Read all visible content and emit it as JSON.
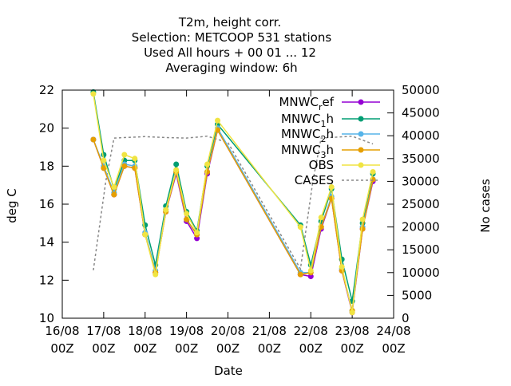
{
  "chart_data": {
    "type": "line",
    "title_lines": [
      "T2m, height corr.",
      "Selection: METCOOP    531 stations",
      "Used  All hours  + 00 01 ... 12",
      "Averaging window:  6h"
    ],
    "xlabel": "Date",
    "ylabel": "deg C",
    "y2label": "No cases",
    "xlim": [
      0,
      8
    ],
    "ylim": [
      10,
      22
    ],
    "y2lim": [
      0,
      50000
    ],
    "x_unit": "days since 16/08 00Z",
    "x_ticks": [
      {
        "x": 0,
        "label": [
          "16/08",
          "00Z"
        ]
      },
      {
        "x": 1,
        "label": [
          "17/08",
          "00Z"
        ]
      },
      {
        "x": 2,
        "label": [
          "18/08",
          "00Z"
        ]
      },
      {
        "x": 3,
        "label": [
          "19/08",
          "00Z"
        ]
      },
      {
        "x": 4,
        "label": [
          "20/08",
          "00Z"
        ]
      },
      {
        "x": 5,
        "label": [
          "21/08",
          "00Z"
        ]
      },
      {
        "x": 6,
        "label": [
          "22/08",
          "00Z"
        ]
      },
      {
        "x": 7,
        "label": [
          "23/08",
          "00Z"
        ]
      },
      {
        "x": 8,
        "label": [
          "24/08",
          "00Z"
        ]
      }
    ],
    "y_ticks": [
      10,
      12,
      14,
      16,
      18,
      20,
      22
    ],
    "y2_ticks": [
      0,
      5000,
      10000,
      15000,
      20000,
      25000,
      30000,
      35000,
      40000,
      45000,
      50000
    ],
    "legend_position": "top-right",
    "grid": false,
    "x": [
      0.75,
      1.0,
      1.25,
      1.5,
      1.75,
      2.0,
      2.25,
      2.5,
      2.75,
      3.0,
      3.25,
      3.5,
      3.75,
      5.75,
      6.0,
      6.25,
      6.5,
      6.75,
      7.0,
      7.25,
      7.5
    ],
    "series": [
      {
        "name": "MNWC_ref",
        "color": "#9400d3",
        "axis": "y",
        "marker": "circle",
        "y": [
          19.4,
          17.9,
          16.5,
          18.0,
          17.9,
          14.4,
          12.4,
          15.6,
          17.6,
          15.1,
          14.2,
          17.6,
          19.9,
          12.3,
          12.2,
          14.7,
          16.3,
          12.5,
          10.3,
          14.7,
          17.2
        ]
      },
      {
        "name": "MNWC_1h",
        "color": "#009e73",
        "axis": "y",
        "marker": "circle",
        "y": [
          21.9,
          18.6,
          16.8,
          18.3,
          18.3,
          14.9,
          12.8,
          15.9,
          18.1,
          15.6,
          14.6,
          18.0,
          20.2,
          14.9,
          12.8,
          15.1,
          16.8,
          13.1,
          10.9,
          15.0,
          17.6
        ]
      },
      {
        "name": "MNWC_2h",
        "color": "#56b4e9",
        "axis": "y",
        "marker": "circle",
        "y": [
          19.4,
          18.0,
          16.6,
          18.1,
          18.0,
          14.5,
          12.5,
          15.7,
          17.7,
          15.2,
          14.4,
          17.7,
          20.0,
          12.4,
          12.4,
          14.8,
          16.4,
          12.6,
          10.4,
          14.8,
          17.3
        ]
      },
      {
        "name": "MNWC_3h",
        "color": "#e69f00",
        "axis": "y",
        "marker": "circle",
        "y": [
          19.4,
          17.9,
          16.5,
          18.0,
          17.9,
          14.4,
          12.4,
          15.6,
          17.7,
          15.2,
          14.4,
          17.7,
          19.9,
          12.3,
          12.4,
          14.8,
          16.3,
          12.5,
          10.4,
          14.7,
          17.3
        ]
      },
      {
        "name": "OBS",
        "color": "#f0e442",
        "axis": "y",
        "marker": "circle",
        "y": [
          21.8,
          18.3,
          16.9,
          18.6,
          18.4,
          14.4,
          12.3,
          15.7,
          17.8,
          15.5,
          14.5,
          18.1,
          20.4,
          14.8,
          12.5,
          15.3,
          16.9,
          12.7,
          10.3,
          15.2,
          17.7
        ]
      },
      {
        "name": "CASES",
        "color": "#888888",
        "axis": "y2",
        "dashed": true,
        "x": [
          0.75,
          1.05,
          1.25,
          2.0,
          2.5,
          3.0,
          3.5,
          4.0,
          5.75,
          6.05,
          6.25,
          7.0,
          7.5
        ],
        "y": [
          10500,
          30000,
          39500,
          39800,
          39600,
          39500,
          39900,
          38500,
          10800,
          30000,
          39500,
          39900,
          38200
        ]
      }
    ],
    "legend": [
      {
        "text": "MNWC",
        "sub": "r",
        "suffix": "ef"
      },
      {
        "text": "MNWC",
        "sub": "1",
        "suffix": "h"
      },
      {
        "text": "MNWC",
        "sub": "2",
        "suffix": "h"
      },
      {
        "text": "MNWC",
        "sub": "3",
        "suffix": "h"
      },
      {
        "text": "OBS",
        "sub": "",
        "suffix": ""
      },
      {
        "text": "CASES",
        "sub": "",
        "suffix": ""
      }
    ]
  }
}
